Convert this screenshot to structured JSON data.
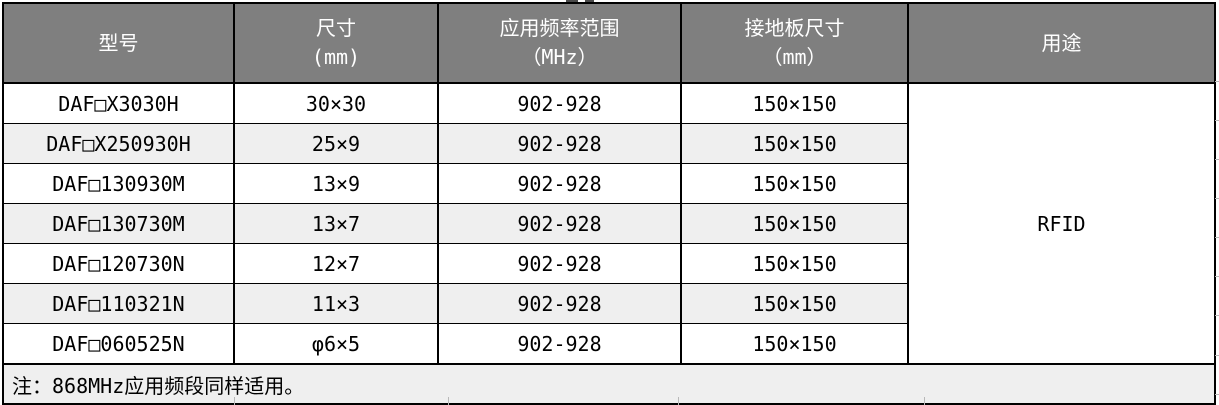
{
  "table": {
    "columns": [
      {
        "label": "型号",
        "unit": ""
      },
      {
        "label": "尺寸",
        "unit": "(mm)"
      },
      {
        "label": "应用频率范围",
        "unit": "（MHz）"
      },
      {
        "label": "接地板尺寸",
        "unit": "（mm）"
      },
      {
        "label": "用途",
        "unit": ""
      }
    ],
    "rows": [
      {
        "model": "DAF□X3030H",
        "size": "30×30",
        "freq": "902-928",
        "ground": "150×150"
      },
      {
        "model": "DAF□X250930H",
        "size": "25×9",
        "freq": "902-928",
        "ground": "150×150"
      },
      {
        "model": "DAF□130930M",
        "size": "13×9",
        "freq": "902-928",
        "ground": "150×150"
      },
      {
        "model": "DAF□130730M",
        "size": "13×7",
        "freq": "902-928",
        "ground": "150×150"
      },
      {
        "model": "DAF□120730N",
        "size": "12×7",
        "freq": "902-928",
        "ground": "150×150"
      },
      {
        "model": "DAF□110321N",
        "size": "11×3",
        "freq": "902-928",
        "ground": "150×150"
      },
      {
        "model": "DAF□060525N",
        "size": "φ6×5",
        "freq": "902-928",
        "ground": "150×150"
      }
    ],
    "usage": "RFID",
    "note": "注：868MHz应用频段同样适用。"
  },
  "colors": {
    "header_bg": "#7f7f7f",
    "header_text": "#ffffff",
    "row_alt_bg": "#efefef",
    "border": "#000000",
    "gridline": "#b8b8b8"
  }
}
